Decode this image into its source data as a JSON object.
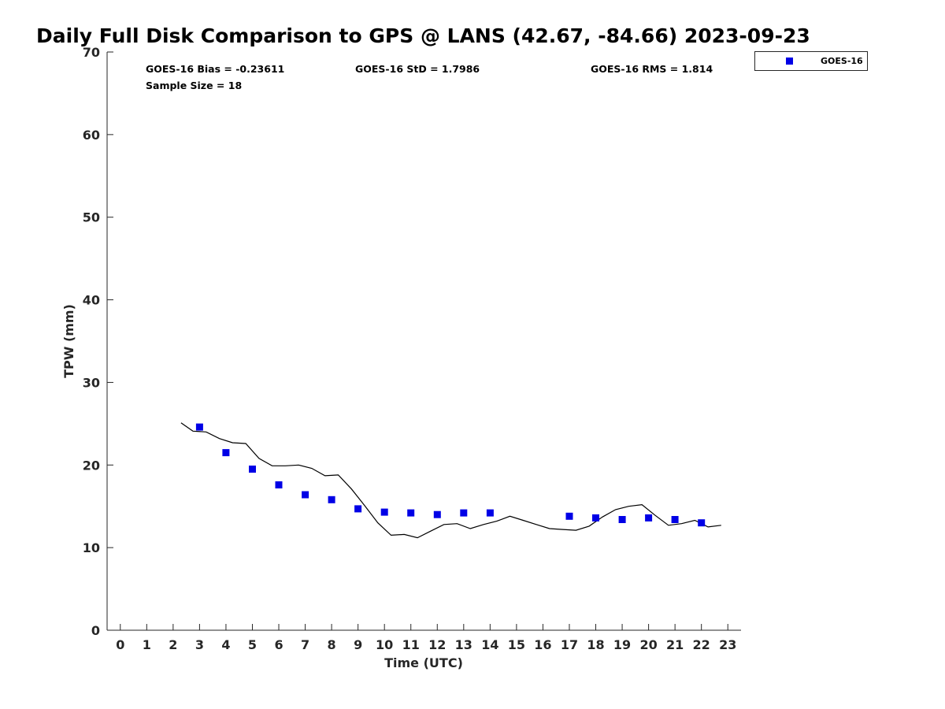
{
  "chart_data": {
    "type": "scatter",
    "title": "Daily Full Disk Comparison to GPS @ LANS (42.67, -84.66) 2023-09-23",
    "xlabel": "Time (UTC)",
    "ylabel": "TPW (mm)",
    "xlim": [
      -0.5,
      23.5
    ],
    "ylim": [
      0,
      70
    ],
    "xticks": [
      0,
      1,
      2,
      3,
      4,
      5,
      6,
      7,
      8,
      9,
      10,
      11,
      12,
      13,
      14,
      15,
      16,
      17,
      18,
      19,
      20,
      21,
      22,
      23
    ],
    "yticks": [
      0,
      10,
      20,
      30,
      40,
      50,
      60,
      70
    ],
    "grid": false,
    "legend_position": "top-right, outside plot",
    "stats": {
      "bias": "GOES-16 Bias = -0.23611",
      "std": "GOES-16 StD = 1.7986",
      "rms": "GOES-16 RMS = 1.814",
      "sample_size": "Sample Size = 18"
    },
    "series": [
      {
        "name": "GOES-16",
        "kind": "scatter",
        "marker": "square",
        "color": "#0000e6",
        "x": [
          3,
          4,
          5,
          6,
          7,
          8,
          9,
          10,
          11,
          12,
          13,
          14,
          17,
          18,
          19,
          20,
          21,
          22
        ],
        "y": [
          24.6,
          21.5,
          19.5,
          17.6,
          16.4,
          15.8,
          14.7,
          14.3,
          14.2,
          14.0,
          14.2,
          14.2,
          13.8,
          13.6,
          13.4,
          13.6,
          13.4,
          13.0
        ]
      },
      {
        "kind": "line",
        "color": "#000000",
        "x": [
          2.3,
          2.75,
          3.25,
          3.75,
          4.25,
          4.75,
          5.25,
          5.75,
          6.25,
          6.75,
          7.25,
          7.75,
          8.25,
          8.75,
          9.25,
          9.75,
          10.25,
          10.75,
          11.25,
          11.75,
          12.25,
          12.75,
          13.25,
          13.75,
          14.25,
          14.75,
          15.25,
          15.75,
          16.25,
          16.75,
          17.25,
          17.75,
          18.25,
          18.75,
          19.25,
          19.75,
          20.25,
          20.75,
          21.25,
          21.75,
          22.25,
          22.75
        ],
        "y": [
          25.1,
          24.1,
          24.0,
          23.2,
          22.7,
          22.6,
          20.8,
          19.9,
          19.9,
          20.0,
          19.6,
          18.7,
          18.8,
          17.1,
          15.1,
          13.0,
          11.5,
          11.6,
          11.2,
          12.0,
          12.8,
          12.9,
          12.3,
          12.8,
          13.2,
          13.8,
          13.3,
          12.8,
          12.3,
          12.2,
          12.1,
          12.6,
          13.7,
          14.6,
          15.0,
          15.2,
          13.9,
          12.7,
          12.9,
          13.3,
          12.5,
          12.7
        ]
      }
    ]
  }
}
